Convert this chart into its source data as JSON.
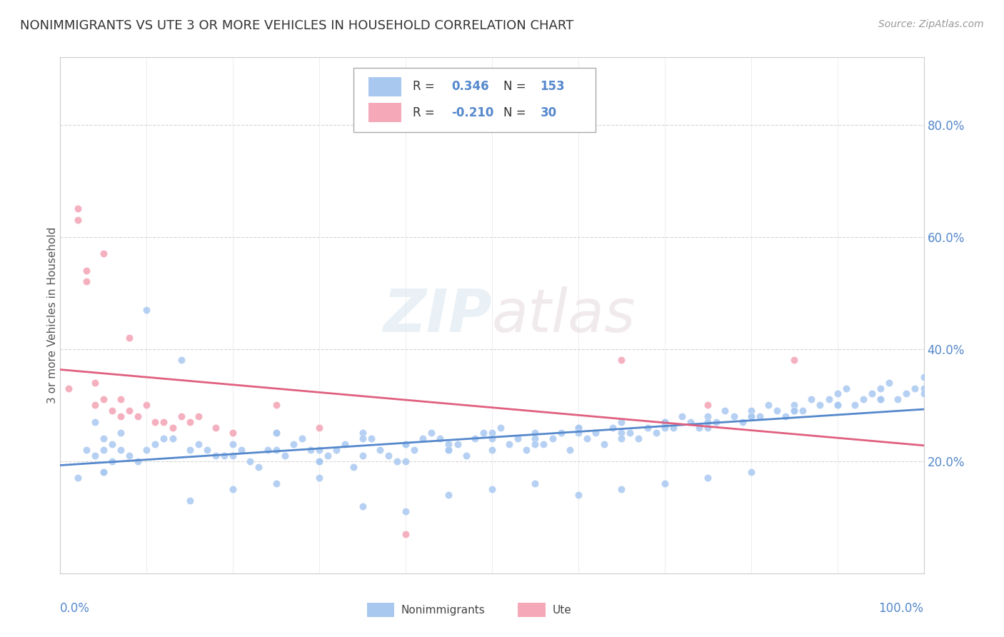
{
  "title": "NONIMMIGRANTS VS UTE 3 OR MORE VEHICLES IN HOUSEHOLD CORRELATION CHART",
  "source": "Source: ZipAtlas.com",
  "ylabel": "3 or more Vehicles in Household",
  "watermark_zip": "ZIP",
  "watermark_atlas": "atlas",
  "blue_scatter_color": "#a8c8f0",
  "pink_scatter_color": "#f4a8b8",
  "blue_line_color": "#5588cc",
  "pink_line_color": "#e06080",
  "axis_color": "#5588cc",
  "grid_color": "#cccccc",
  "watermark_color": "#e0e8f0",
  "ylim": [
    0.0,
    0.92
  ],
  "xlim": [
    0.0,
    1.0
  ],
  "yticks": [
    0.2,
    0.4,
    0.6,
    0.8
  ],
  "ytick_labels": [
    "20.0%",
    "40.0%",
    "60.0%",
    "80.0%"
  ],
  "R_blue": 0.346,
  "N_blue": 153,
  "R_pink": -0.21,
  "N_pink": 30,
  "nonimmigrants_x": [
    0.02,
    0.03,
    0.04,
    0.04,
    0.05,
    0.05,
    0.05,
    0.06,
    0.06,
    0.07,
    0.07,
    0.08,
    0.09,
    0.1,
    0.11,
    0.12,
    0.13,
    0.14,
    0.15,
    0.16,
    0.17,
    0.18,
    0.19,
    0.2,
    0.21,
    0.22,
    0.23,
    0.24,
    0.25,
    0.26,
    0.27,
    0.28,
    0.29,
    0.3,
    0.31,
    0.32,
    0.33,
    0.34,
    0.35,
    0.36,
    0.37,
    0.38,
    0.39,
    0.4,
    0.41,
    0.42,
    0.43,
    0.44,
    0.45,
    0.46,
    0.47,
    0.48,
    0.49,
    0.5,
    0.51,
    0.52,
    0.53,
    0.54,
    0.55,
    0.56,
    0.57,
    0.58,
    0.59,
    0.6,
    0.61,
    0.62,
    0.63,
    0.64,
    0.65,
    0.66,
    0.67,
    0.68,
    0.69,
    0.7,
    0.71,
    0.72,
    0.73,
    0.74,
    0.75,
    0.76,
    0.77,
    0.78,
    0.79,
    0.8,
    0.81,
    0.82,
    0.83,
    0.84,
    0.85,
    0.86,
    0.87,
    0.88,
    0.89,
    0.9,
    0.91,
    0.92,
    0.93,
    0.94,
    0.95,
    0.96,
    0.97,
    0.98,
    0.99,
    1.0,
    0.25,
    0.3,
    0.35,
    0.4,
    0.45,
    0.5,
    0.55,
    0.6,
    0.65,
    0.7,
    0.75,
    0.8,
    0.85,
    0.9,
    0.95,
    1.0,
    0.2,
    0.25,
    0.3,
    0.35,
    0.4,
    0.45,
    0.5,
    0.55,
    0.6,
    0.65,
    0.7,
    0.75,
    0.8,
    0.85,
    0.9,
    0.95,
    1.0,
    0.05,
    0.1,
    0.15,
    0.2,
    0.25,
    0.3,
    0.35,
    0.4,
    0.45,
    0.5,
    0.55,
    0.6,
    0.65,
    0.7,
    0.75,
    0.8
  ],
  "nonimmigrants_y": [
    0.17,
    0.22,
    0.21,
    0.27,
    0.22,
    0.18,
    0.24,
    0.2,
    0.23,
    0.22,
    0.25,
    0.21,
    0.2,
    0.47,
    0.23,
    0.24,
    0.24,
    0.38,
    0.22,
    0.23,
    0.22,
    0.21,
    0.21,
    0.23,
    0.22,
    0.2,
    0.19,
    0.22,
    0.25,
    0.21,
    0.23,
    0.24,
    0.22,
    0.2,
    0.21,
    0.22,
    0.23,
    0.19,
    0.25,
    0.24,
    0.22,
    0.21,
    0.2,
    0.23,
    0.22,
    0.24,
    0.25,
    0.24,
    0.22,
    0.23,
    0.21,
    0.24,
    0.25,
    0.22,
    0.26,
    0.23,
    0.24,
    0.22,
    0.25,
    0.23,
    0.24,
    0.25,
    0.22,
    0.26,
    0.24,
    0.25,
    0.23,
    0.26,
    0.27,
    0.25,
    0.24,
    0.26,
    0.25,
    0.27,
    0.26,
    0.28,
    0.27,
    0.26,
    0.28,
    0.27,
    0.29,
    0.28,
    0.27,
    0.29,
    0.28,
    0.3,
    0.29,
    0.28,
    0.3,
    0.29,
    0.31,
    0.3,
    0.31,
    0.32,
    0.33,
    0.3,
    0.31,
    0.32,
    0.33,
    0.34,
    0.31,
    0.32,
    0.33,
    0.35,
    0.25,
    0.22,
    0.24,
    0.2,
    0.23,
    0.25,
    0.24,
    0.26,
    0.25,
    0.27,
    0.26,
    0.28,
    0.29,
    0.3,
    0.31,
    0.33,
    0.21,
    0.22,
    0.2,
    0.21,
    0.23,
    0.22,
    0.24,
    0.23,
    0.25,
    0.24,
    0.26,
    0.27,
    0.28,
    0.29,
    0.3,
    0.31,
    0.32,
    0.18,
    0.22,
    0.13,
    0.15,
    0.16,
    0.17,
    0.12,
    0.11,
    0.14,
    0.15,
    0.16,
    0.14,
    0.15,
    0.16,
    0.17,
    0.18
  ],
  "ute_x": [
    0.01,
    0.02,
    0.02,
    0.03,
    0.03,
    0.04,
    0.04,
    0.05,
    0.05,
    0.06,
    0.07,
    0.07,
    0.08,
    0.08,
    0.09,
    0.1,
    0.11,
    0.12,
    0.13,
    0.14,
    0.15,
    0.16,
    0.18,
    0.2,
    0.25,
    0.3,
    0.4,
    0.65,
    0.75,
    0.85
  ],
  "ute_y": [
    0.33,
    0.65,
    0.63,
    0.52,
    0.54,
    0.34,
    0.3,
    0.57,
    0.31,
    0.29,
    0.31,
    0.28,
    0.29,
    0.42,
    0.28,
    0.3,
    0.27,
    0.27,
    0.26,
    0.28,
    0.27,
    0.28,
    0.26,
    0.25,
    0.3,
    0.26,
    0.07,
    0.38,
    0.3,
    0.38
  ]
}
